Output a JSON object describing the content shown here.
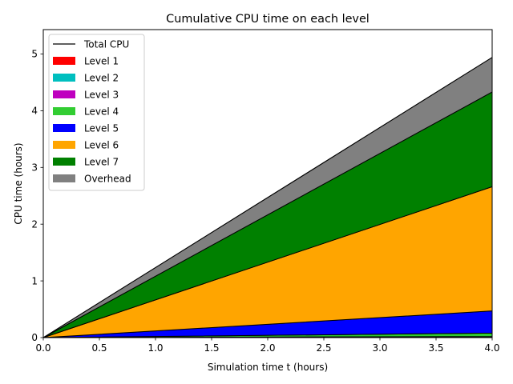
{
  "chart_data": {
    "type": "area",
    "title": "Cumulative CPU time on each level",
    "xlabel": "Simulation time t (hours)",
    "ylabel": "CPU time (hours)",
    "xlim": [
      0.0,
      4.0
    ],
    "ylim": [
      0.0,
      5.43
    ],
    "xticks": [
      0.0,
      0.5,
      1.0,
      1.5,
      2.0,
      2.5,
      3.0,
      3.5,
      4.0
    ],
    "xtick_labels": [
      "0.0",
      "0.5",
      "1.0",
      "1.5",
      "2.0",
      "2.5",
      "3.0",
      "3.5",
      "4.0"
    ],
    "yticks": [
      0,
      1,
      2,
      3,
      4,
      5
    ],
    "ytick_labels": [
      "0",
      "1",
      "2",
      "3",
      "4",
      "5"
    ],
    "grid": false,
    "legend_position": "top-left",
    "x": [
      0.0,
      4.0
    ],
    "series": [
      {
        "name": "Level 1",
        "color": "#ff0000",
        "values": [
          0.0,
          0.01
        ]
      },
      {
        "name": "Level 2",
        "color": "#00bfbf",
        "values": [
          0.0,
          0.005
        ]
      },
      {
        "name": "Level 3",
        "color": "#bf00bf",
        "values": [
          0.0,
          0.005
        ]
      },
      {
        "name": "Level 4",
        "color": "#32cd32",
        "values": [
          0.0,
          0.06
        ]
      },
      {
        "name": "Level 5",
        "color": "#0000ff",
        "values": [
          0.0,
          0.39
        ]
      },
      {
        "name": "Level 6",
        "color": "#ffa500",
        "values": [
          0.0,
          2.19
        ]
      },
      {
        "name": "Level 7",
        "color": "#008000",
        "values": [
          0.0,
          1.67
        ]
      },
      {
        "name": "Overhead",
        "color": "#808080",
        "values": [
          0.0,
          0.61
        ]
      }
    ],
    "total": {
      "name": "Total CPU",
      "color": "#000000",
      "values": [
        0.0,
        4.94
      ]
    }
  }
}
